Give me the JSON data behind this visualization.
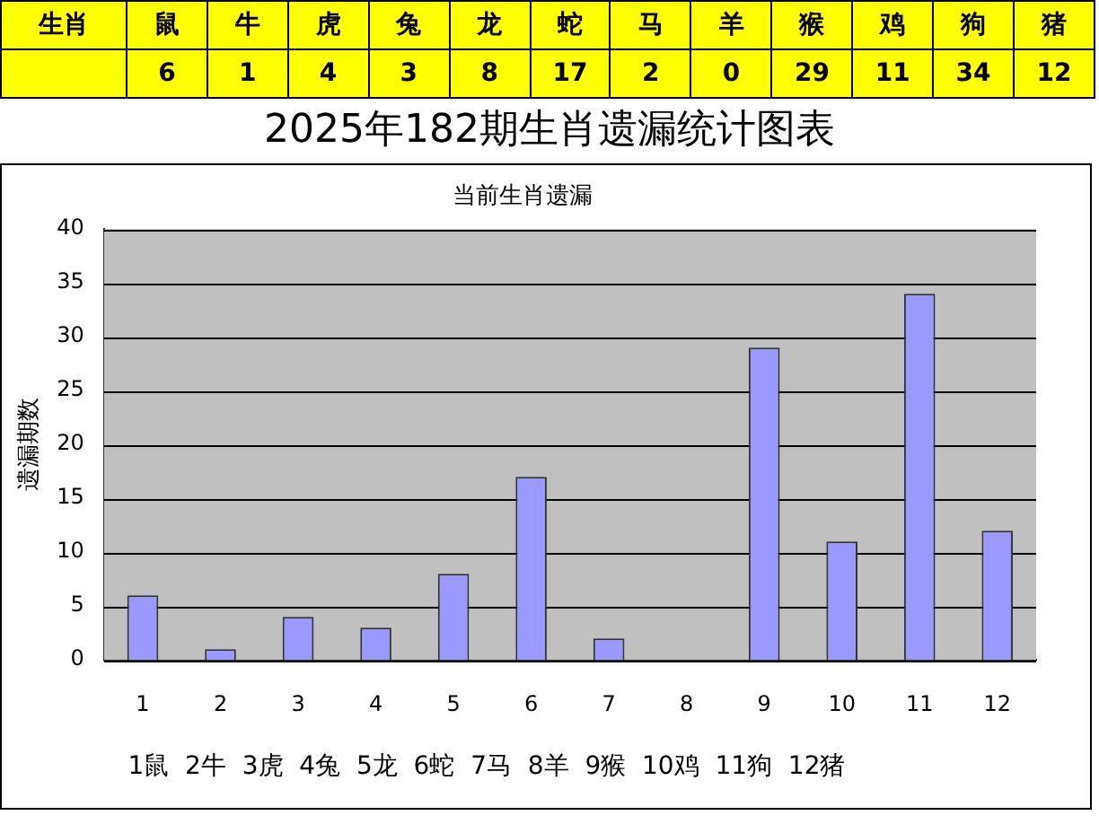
{
  "chart_data": [
    {
      "type": "other",
      "ylabel": "生肖",
      "categories": [
        "鼠",
        "牛",
        "虎",
        "兔",
        "龙",
        "蛇",
        "马",
        "羊",
        "猴",
        "鸡",
        "狗",
        "猪"
      ],
      "values": [
        6,
        1,
        4,
        3,
        8,
        17,
        2,
        0,
        29,
        11,
        34,
        12
      ],
      "color": "#ffff00",
      "data_labels": true
    },
    {
      "type": "bar",
      "title": "2025年182期生肖遗漏统计图表",
      "subtitle": "当前生肖遗漏",
      "ylabel": "遗漏期数",
      "categories": [
        "1",
        "2",
        "3",
        "4",
        "5",
        "6",
        "7",
        "8",
        "9",
        "10",
        "11",
        "12"
      ],
      "values": [
        6,
        1,
        4,
        3,
        8,
        17,
        2,
        0,
        29,
        11,
        34,
        12
      ],
      "color": "#9999ff",
      "ylim": [
        0,
        40
      ],
      "yticks": [
        0,
        5,
        10,
        15,
        20,
        25,
        30,
        35,
        40
      ],
      "grid": "y",
      "annotations": [
        "1鼠  2牛  3虎  4兔  5龙  6蛇  7马  8羊  9猴  10鸡  11狗  12猪"
      ]
    }
  ]
}
